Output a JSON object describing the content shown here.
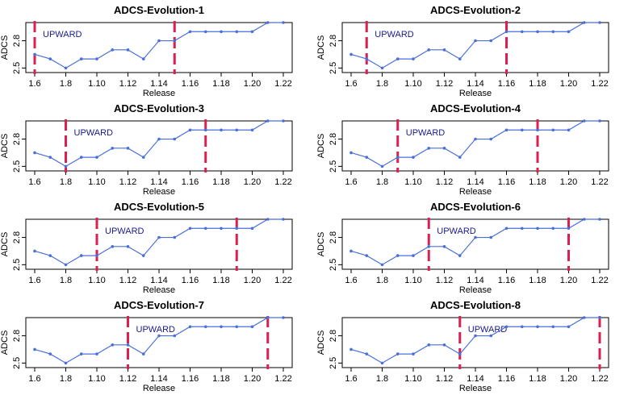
{
  "colors": {
    "line": "#4a6fdc",
    "marker": "#4a6fdc",
    "vline": "#dc1f4f",
    "annot": "#1a1a8c"
  },
  "chart_data": [
    {
      "type": "line",
      "title": "ADCS-Evolution-1",
      "xlabel": "Release",
      "ylabel": "ADCS",
      "categories": [
        "1.6",
        "1.7",
        "1.8",
        "1.9",
        "1.10",
        "1.11",
        "1.12",
        "1.13",
        "1.14",
        "1.15",
        "1.16",
        "1.17",
        "1.18",
        "1.19",
        "1.20",
        "1.21",
        "1.22"
      ],
      "x_tick_labels": [
        "1.6",
        "1.8",
        "1.10",
        "1.12",
        "1.14",
        "1.16",
        "1.18",
        "1.20",
        "1.22"
      ],
      "y_ticks": [
        "2.5",
        "2.8"
      ],
      "ylim": [
        2.45,
        3.0
      ],
      "values": [
        2.65,
        2.6,
        2.5,
        2.6,
        2.6,
        2.7,
        2.7,
        2.6,
        2.8,
        2.8,
        2.9,
        2.9,
        2.9,
        2.9,
        2.9,
        3.0,
        3.0
      ],
      "annotation": "UPWARD",
      "change_points": [
        "1.6",
        "1.15"
      ]
    },
    {
      "type": "line",
      "title": "ADCS-Evolution-2",
      "xlabel": "Release",
      "ylabel": "ADCS",
      "categories": [
        "1.6",
        "1.7",
        "1.8",
        "1.9",
        "1.10",
        "1.11",
        "1.12",
        "1.13",
        "1.14",
        "1.15",
        "1.16",
        "1.17",
        "1.18",
        "1.19",
        "1.20",
        "1.21",
        "1.22"
      ],
      "x_tick_labels": [
        "1.6",
        "1.8",
        "1.10",
        "1.12",
        "1.14",
        "1.16",
        "1.18",
        "1.20",
        "1.22"
      ],
      "y_ticks": [
        "2.5",
        "2.8"
      ],
      "ylim": [
        2.45,
        3.0
      ],
      "values": [
        2.65,
        2.6,
        2.5,
        2.6,
        2.6,
        2.7,
        2.7,
        2.6,
        2.8,
        2.8,
        2.9,
        2.9,
        2.9,
        2.9,
        2.9,
        3.0,
        3.0
      ],
      "annotation": "UPWARD",
      "change_points": [
        "1.7",
        "1.16"
      ]
    },
    {
      "type": "line",
      "title": "ADCS-Evolution-3",
      "xlabel": "Release",
      "ylabel": "ADCS",
      "categories": [
        "1.6",
        "1.7",
        "1.8",
        "1.9",
        "1.10",
        "1.11",
        "1.12",
        "1.13",
        "1.14",
        "1.15",
        "1.16",
        "1.17",
        "1.18",
        "1.19",
        "1.20",
        "1.21",
        "1.22"
      ],
      "x_tick_labels": [
        "1.6",
        "1.8",
        "1.10",
        "1.12",
        "1.14",
        "1.16",
        "1.18",
        "1.20",
        "1.22"
      ],
      "y_ticks": [
        "2.5",
        "2.8"
      ],
      "ylim": [
        2.45,
        3.0
      ],
      "values": [
        2.65,
        2.6,
        2.5,
        2.6,
        2.6,
        2.7,
        2.7,
        2.6,
        2.8,
        2.8,
        2.9,
        2.9,
        2.9,
        2.9,
        2.9,
        3.0,
        3.0
      ],
      "annotation": "UPWARD",
      "change_points": [
        "1.8",
        "1.17"
      ]
    },
    {
      "type": "line",
      "title": "ADCS-Evolution-4",
      "xlabel": "Release",
      "ylabel": "ADCS",
      "categories": [
        "1.6",
        "1.7",
        "1.8",
        "1.9",
        "1.10",
        "1.11",
        "1.12",
        "1.13",
        "1.14",
        "1.15",
        "1.16",
        "1.17",
        "1.18",
        "1.19",
        "1.20",
        "1.21",
        "1.22"
      ],
      "x_tick_labels": [
        "1.6",
        "1.8",
        "1.10",
        "1.12",
        "1.14",
        "1.16",
        "1.18",
        "1.20",
        "1.22"
      ],
      "y_ticks": [
        "2.5",
        "2.8"
      ],
      "ylim": [
        2.45,
        3.0
      ],
      "values": [
        2.65,
        2.6,
        2.5,
        2.6,
        2.6,
        2.7,
        2.7,
        2.6,
        2.8,
        2.8,
        2.9,
        2.9,
        2.9,
        2.9,
        2.9,
        3.0,
        3.0
      ],
      "annotation": "UPWARD",
      "change_points": [
        "1.9",
        "1.18"
      ]
    },
    {
      "type": "line",
      "title": "ADCS-Evolution-5",
      "xlabel": "Release",
      "ylabel": "ADCS",
      "categories": [
        "1.6",
        "1.7",
        "1.8",
        "1.9",
        "1.10",
        "1.11",
        "1.12",
        "1.13",
        "1.14",
        "1.15",
        "1.16",
        "1.17",
        "1.18",
        "1.19",
        "1.20",
        "1.21",
        "1.22"
      ],
      "x_tick_labels": [
        "1.6",
        "1.8",
        "1.10",
        "1.12",
        "1.14",
        "1.16",
        "1.18",
        "1.20",
        "1.22"
      ],
      "y_ticks": [
        "2.5",
        "2.8"
      ],
      "ylim": [
        2.45,
        3.0
      ],
      "values": [
        2.65,
        2.6,
        2.5,
        2.6,
        2.6,
        2.7,
        2.7,
        2.6,
        2.8,
        2.8,
        2.9,
        2.9,
        2.9,
        2.9,
        2.9,
        3.0,
        3.0
      ],
      "annotation": "UPWARD",
      "change_points": [
        "1.10",
        "1.19"
      ]
    },
    {
      "type": "line",
      "title": "ADCS-Evolution-6",
      "xlabel": "Release",
      "ylabel": "ADCS",
      "categories": [
        "1.6",
        "1.7",
        "1.8",
        "1.9",
        "1.10",
        "1.11",
        "1.12",
        "1.13",
        "1.14",
        "1.15",
        "1.16",
        "1.17",
        "1.18",
        "1.19",
        "1.20",
        "1.21",
        "1.22"
      ],
      "x_tick_labels": [
        "1.6",
        "1.8",
        "1.10",
        "1.12",
        "1.14",
        "1.16",
        "1.18",
        "1.20",
        "1.22"
      ],
      "y_ticks": [
        "2.5",
        "2.8"
      ],
      "ylim": [
        2.45,
        3.0
      ],
      "values": [
        2.65,
        2.6,
        2.5,
        2.6,
        2.6,
        2.7,
        2.7,
        2.6,
        2.8,
        2.8,
        2.9,
        2.9,
        2.9,
        2.9,
        2.9,
        3.0,
        3.0
      ],
      "annotation": "UPWARD",
      "change_points": [
        "1.11",
        "1.20"
      ]
    },
    {
      "type": "line",
      "title": "ADCS-Evolution-7",
      "xlabel": "Release",
      "ylabel": "ADCS",
      "categories": [
        "1.6",
        "1.7",
        "1.8",
        "1.9",
        "1.10",
        "1.11",
        "1.12",
        "1.13",
        "1.14",
        "1.15",
        "1.16",
        "1.17",
        "1.18",
        "1.19",
        "1.20",
        "1.21",
        "1.22"
      ],
      "x_tick_labels": [
        "1.6",
        "1.8",
        "1.10",
        "1.12",
        "1.14",
        "1.16",
        "1.18",
        "1.20",
        "1.22"
      ],
      "y_ticks": [
        "2.5",
        "2.8"
      ],
      "ylim": [
        2.45,
        3.0
      ],
      "values": [
        2.65,
        2.6,
        2.5,
        2.6,
        2.6,
        2.7,
        2.7,
        2.6,
        2.8,
        2.8,
        2.9,
        2.9,
        2.9,
        2.9,
        2.9,
        3.0,
        3.0
      ],
      "annotation": "UPWARD",
      "change_points": [
        "1.12",
        "1.21"
      ]
    },
    {
      "type": "line",
      "title": "ADCS-Evolution-8",
      "xlabel": "Release",
      "ylabel": "ADCS",
      "categories": [
        "1.6",
        "1.7",
        "1.8",
        "1.9",
        "1.10",
        "1.11",
        "1.12",
        "1.13",
        "1.14",
        "1.15",
        "1.16",
        "1.17",
        "1.18",
        "1.19",
        "1.20",
        "1.21",
        "1.22"
      ],
      "x_tick_labels": [
        "1.6",
        "1.8",
        "1.10",
        "1.12",
        "1.14",
        "1.16",
        "1.18",
        "1.20",
        "1.22"
      ],
      "y_ticks": [
        "2.5",
        "2.8"
      ],
      "ylim": [
        2.45,
        3.0
      ],
      "values": [
        2.65,
        2.6,
        2.5,
        2.6,
        2.6,
        2.7,
        2.7,
        2.6,
        2.8,
        2.8,
        2.9,
        2.9,
        2.9,
        2.9,
        2.9,
        3.0,
        3.0
      ],
      "annotation": "UPWARD",
      "change_points": [
        "1.13",
        "1.22"
      ]
    }
  ]
}
